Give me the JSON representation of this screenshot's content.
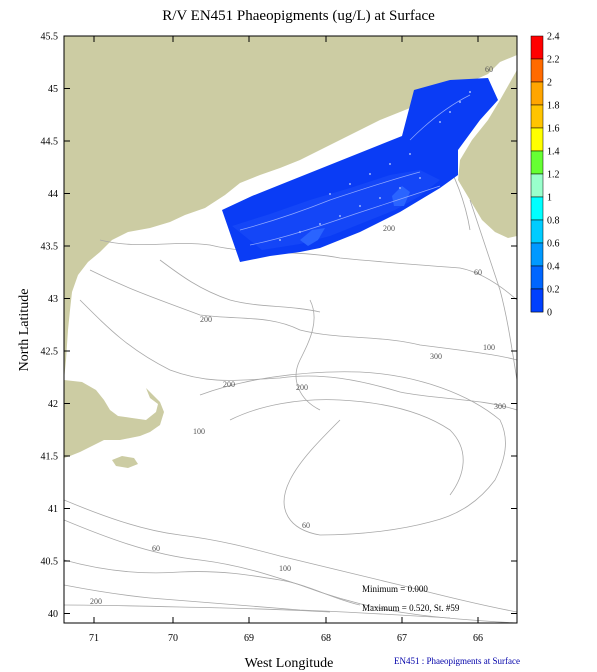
{
  "title": "R/V EN451 Phaeopigments (ug/L) at Surface",
  "x_axis": {
    "label": "West Longitude",
    "ticks": [
      "71",
      "70",
      "69",
      "68",
      "67",
      "66"
    ]
  },
  "y_axis": {
    "label": "North Latitude",
    "ticks": [
      "45.5",
      "45",
      "44.5",
      "44",
      "43.5",
      "43",
      "42.5",
      "42",
      "41.5",
      "41",
      "40.5",
      "40"
    ]
  },
  "contour_labels": [
    "60",
    "200",
    "60",
    "200",
    "100",
    "300",
    "200",
    "200",
    "100",
    "300",
    "60",
    "60",
    "100",
    "200"
  ],
  "legend": {
    "labels": [
      "2.4",
      "2.2",
      "2",
      "1.8",
      "1.6",
      "1.4",
      "1.2",
      "1",
      "0.8",
      "0.6",
      "0.4",
      "0.2",
      "0"
    ],
    "colors": [
      "#ff0000",
      "#ff6a00",
      "#ffa500",
      "#ffc400",
      "#ffff00",
      "#66ff33",
      "#99ffcc",
      "#00ffff",
      "#00ccff",
      "#0099ff",
      "#0066ff",
      "#0040ff",
      "#0020ff"
    ]
  },
  "stats": {
    "minimum": "Minimum = 0.000",
    "maximum": "Maximum = 0.520, St. #59"
  },
  "footer": "EN451 : Phaeopigments at Surface",
  "colors": {
    "land": "#cccca3",
    "water": "#ffffff",
    "survey_fill": "#0a3cf5",
    "contour": "#a8a8a8"
  }
}
